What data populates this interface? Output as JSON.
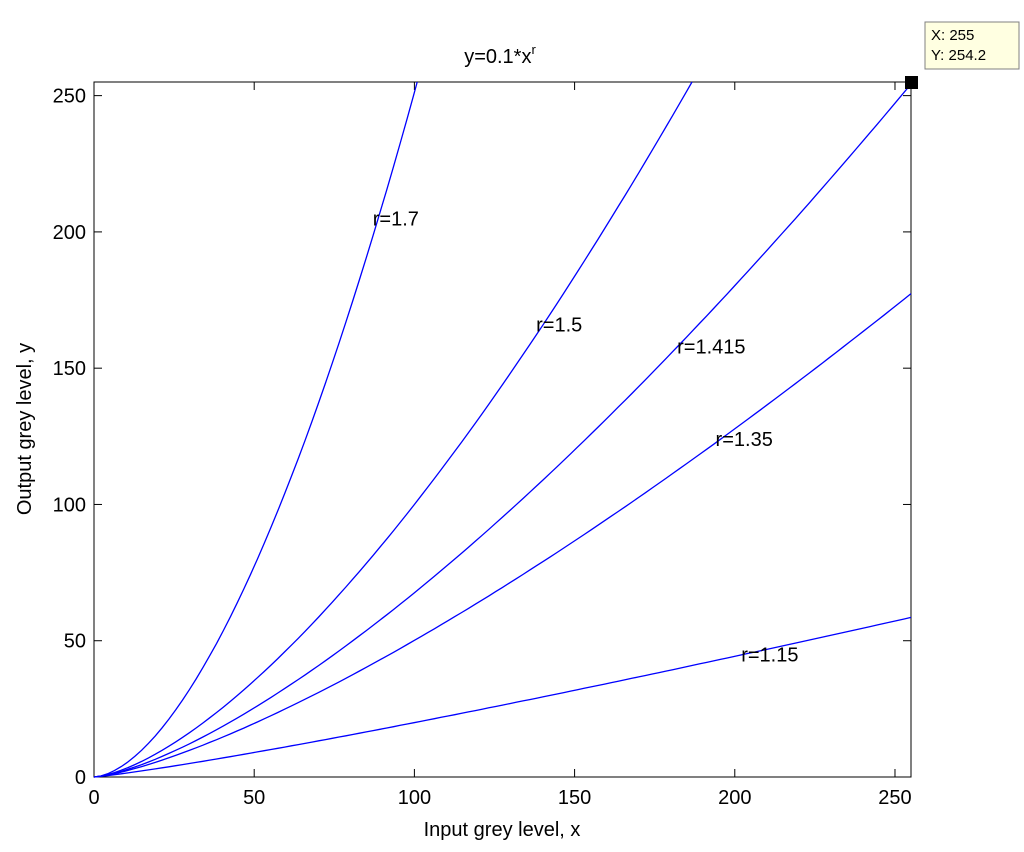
{
  "chart_data": {
    "type": "line",
    "title_base": "y=0.1*x",
    "title_exp": "r",
    "xlabel": "Input grey level, x",
    "ylabel": "Output grey level, y",
    "xlim": [
      0,
      255
    ],
    "ylim": [
      0,
      255
    ],
    "xticks": [
      0,
      50,
      100,
      150,
      200,
      250
    ],
    "yticks": [
      0,
      50,
      100,
      150,
      200,
      250
    ],
    "grid": false,
    "line_color": "#0000ff",
    "series": [
      {
        "label": "r=1.7",
        "gamma": 1.7,
        "coef": 0.1,
        "x": [
          0,
          10,
          20,
          30,
          40,
          50,
          60,
          70,
          80,
          90,
          100
        ],
        "y": [
          0,
          5.0,
          16.2,
          32.5,
          53.0,
          77.0,
          106.0,
          138.0,
          172.0,
          210.0,
          255.0
        ],
        "label_at": [
          87,
          205
        ]
      },
      {
        "label": "r=1.5",
        "gamma": 1.5,
        "coef": 0.1,
        "x": [
          0,
          20,
          40,
          60,
          80,
          100,
          120,
          140,
          160,
          184
        ],
        "y": [
          0,
          9.0,
          25.3,
          46.5,
          71.6,
          100.0,
          131.5,
          165.6,
          202.4,
          255.0
        ],
        "label_at": [
          138,
          166
        ]
      },
      {
        "label": "r=1.415",
        "gamma": 1.415,
        "coef": 0.1,
        "x": [
          0,
          25,
          50,
          75,
          100,
          125,
          150,
          175,
          200,
          225,
          250,
          255
        ],
        "y": [
          0,
          9.4,
          25.3,
          45.0,
          67.5,
          93.0,
          120.0,
          149.0,
          180.0,
          212.0,
          247.0,
          254.2
        ],
        "label_at": [
          182,
          158
        ]
      },
      {
        "label": "r=1.35",
        "gamma": 1.35,
        "coef": 0.1,
        "x": [
          0,
          25,
          50,
          75,
          100,
          125,
          150,
          175,
          200,
          225,
          255
        ],
        "y": [
          0,
          7.9,
          20.0,
          34.0,
          50.0,
          67.5,
          86.0,
          106.0,
          127.0,
          149.0,
          177.0
        ],
        "label_at": [
          194,
          124
        ]
      },
      {
        "label": "r=1.15",
        "gamma": 1.15,
        "coef": 0.1,
        "x": [
          0,
          50,
          100,
          150,
          200,
          255
        ],
        "y": [
          0,
          9.0,
          20.0,
          31.5,
          44.5,
          58.5
        ],
        "label_at": [
          202,
          45
        ]
      }
    ],
    "datatip": {
      "x_text": "X: 255",
      "y_text": "Y: 254.2",
      "x": 255,
      "y": 254.2
    }
  }
}
